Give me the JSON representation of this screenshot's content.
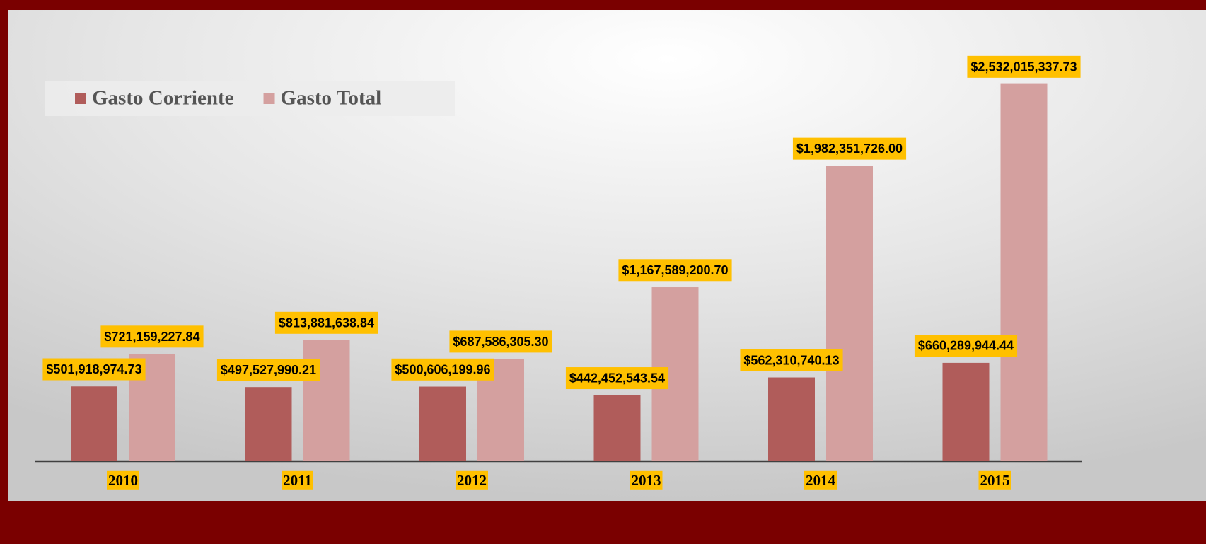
{
  "chart_data": {
    "type": "bar",
    "categories": [
      "2010",
      "2011",
      "2012",
      "2013",
      "2014",
      "2015"
    ],
    "series": [
      {
        "name": "Gasto Corriente",
        "color": "#b05c5a",
        "values": [
          501918974.73,
          497527990.21,
          500606199.96,
          442452543.54,
          562310740.13,
          660289944.44
        ],
        "value_labels": [
          "$501,918,974.73",
          "$497,527,990.21",
          "$500,606,199.96",
          "$442,452,543.54",
          "$562,310,740.13",
          "$660,289,944.44"
        ]
      },
      {
        "name": "Gasto Total",
        "color": "#d4a09f",
        "values": [
          721159227.84,
          813881638.84,
          687586305.3,
          1167589200.7,
          1982351726.0,
          2532015337.73
        ],
        "value_labels": [
          "$721,159,227.84",
          "$813,881,638.84",
          "$687,586,305.30",
          "$1,167,589,200.70",
          "$1,982,351,726.00",
          "$2,532,015,337.73"
        ]
      }
    ],
    "ylim": [
      0,
      3000000000
    ],
    "legend": "top-left",
    "label_color": "#ffc000"
  }
}
